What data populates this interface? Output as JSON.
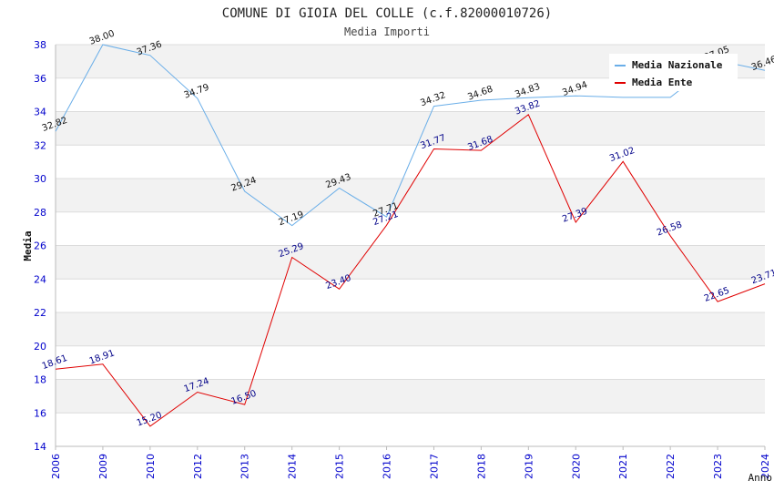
{
  "chart_data": {
    "type": "line",
    "title": "COMUNE DI GIOIA DEL COLLE (c.f.82000010726)",
    "subtitle": "Media Importi",
    "xlabel": "Anno",
    "ylabel": "Media",
    "categories": [
      "2006",
      "2009",
      "2010",
      "2012",
      "2013",
      "2014",
      "2015",
      "2016",
      "2017",
      "2018",
      "2019",
      "2020",
      "2021",
      "2022",
      "2023",
      "2024"
    ],
    "ylim": [
      14,
      38
    ],
    "yticks": [
      14,
      16,
      18,
      20,
      22,
      24,
      26,
      28,
      30,
      32,
      34,
      36,
      38
    ],
    "grid": true,
    "legend_position": "top-right",
    "series": [
      {
        "name": "Media Nazionale",
        "color": "#6aaee8",
        "values": [
          32.82,
          38.0,
          37.36,
          34.79,
          29.24,
          27.19,
          29.43,
          27.71,
          34.32,
          34.68,
          34.83,
          34.94,
          34.85,
          34.85,
          37.05,
          36.46
        ],
        "labels": [
          "32.82",
          "38.00",
          "37.36",
          "34.79",
          "29.24",
          "27.19",
          "29.43",
          "27.71",
          "34.32",
          "34.68",
          "34.83",
          "34.94",
          "",
          "",
          "37.05",
          "36.46"
        ]
      },
      {
        "name": "Media Ente",
        "color": "#e00000",
        "values": [
          18.61,
          18.91,
          15.2,
          17.24,
          16.5,
          25.29,
          23.4,
          27.21,
          31.77,
          31.68,
          33.82,
          27.39,
          31.02,
          26.58,
          22.65,
          23.71
        ],
        "labels": [
          "18.61",
          "18.91",
          "15.20",
          "17.24",
          "16.50",
          "25.29",
          "23.40",
          "27.21",
          "31.77",
          "31.68",
          "33.82",
          "27.39",
          "31.02",
          "26.58",
          "22.65",
          "23.71"
        ]
      }
    ]
  }
}
